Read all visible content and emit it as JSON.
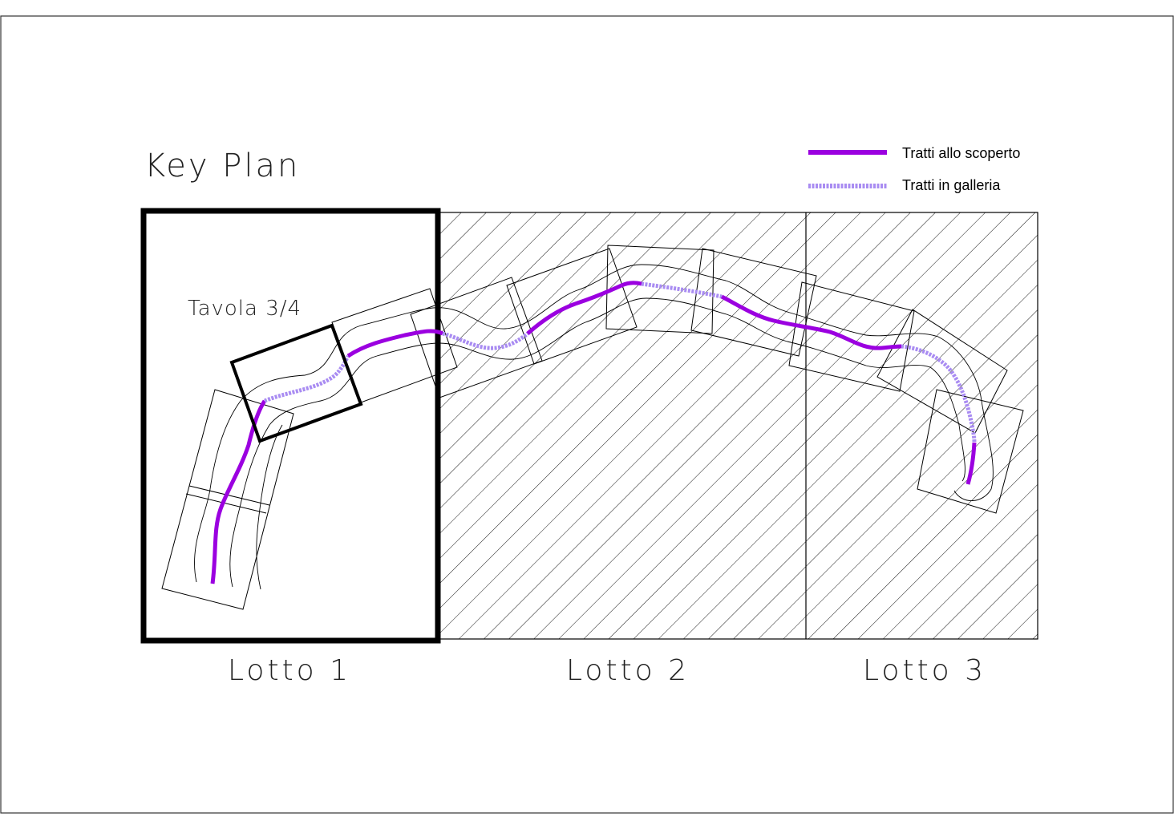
{
  "title": "Key Plan",
  "sheet_label": "Tavola 3/4",
  "legend": {
    "open_label": "Tratti allo scoperto",
    "tunnel_label": "Tratti in galleria"
  },
  "lots": [
    {
      "label": "Lotto 1"
    },
    {
      "label": "Lotto 2"
    },
    {
      "label": "Lotto 3"
    }
  ],
  "colors": {
    "open": "#9b00e0",
    "tunnel": "#a98cf2",
    "line": "#000000"
  }
}
